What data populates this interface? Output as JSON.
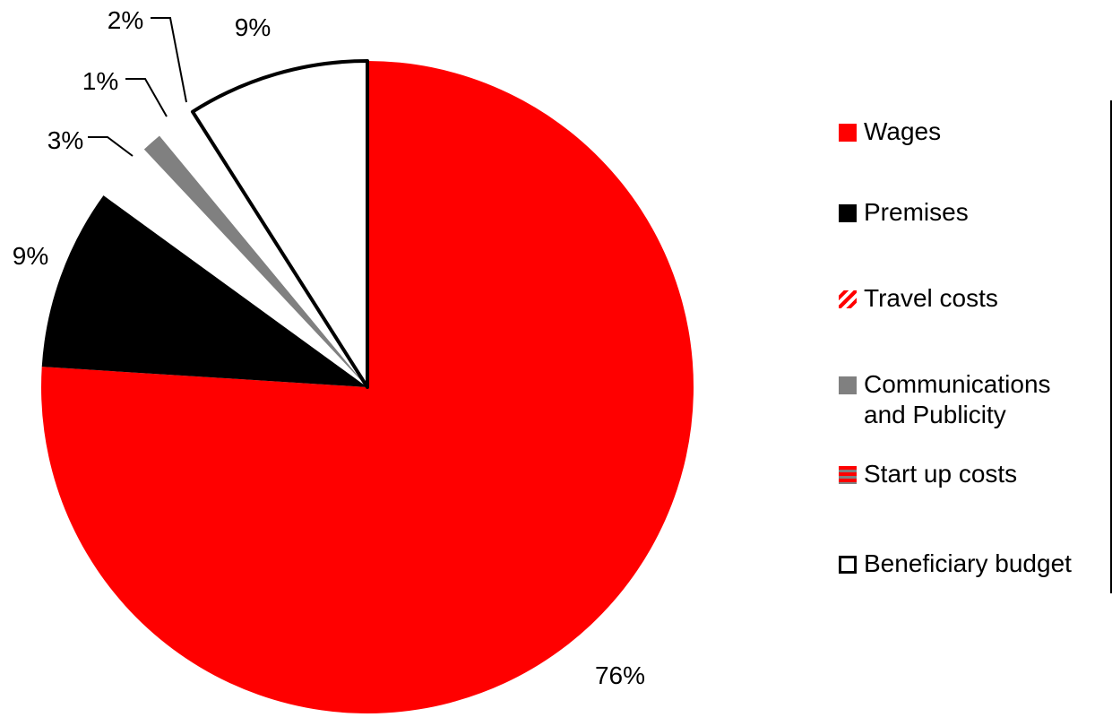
{
  "chart_data": {
    "type": "pie",
    "title": "",
    "slices": [
      {
        "name": "Wages",
        "value": 76,
        "label": "76%",
        "color": "#ff0000"
      },
      {
        "name": "Premises",
        "value": 9,
        "label": "9%",
        "color": "#000000"
      },
      {
        "name": "Travel costs",
        "value": 3,
        "label": "3%",
        "color": "#ff0000"
      },
      {
        "name": "Communications and Publicity",
        "value": 1,
        "label": "1%",
        "color": "#808080"
      },
      {
        "name": "Start up costs",
        "value": 2,
        "label": "2%",
        "color": "#ffffff"
      },
      {
        "name": "Beneficiary budget",
        "value": 9,
        "label": "9%",
        "color": "#ffffff"
      }
    ],
    "legend_position": "right"
  },
  "legend": {
    "items": [
      {
        "label": "Wages",
        "swatch": "solid-red"
      },
      {
        "label": "Premises",
        "swatch": "solid-black"
      },
      {
        "label": "Travel costs",
        "swatch": "hatched-red"
      },
      {
        "label": "Communications and Publicity",
        "swatch": "solid-gray"
      },
      {
        "label": "Start up costs",
        "swatch": "striped-red-gray"
      },
      {
        "label": "Beneficiary budget",
        "swatch": "white-outlined"
      }
    ]
  }
}
